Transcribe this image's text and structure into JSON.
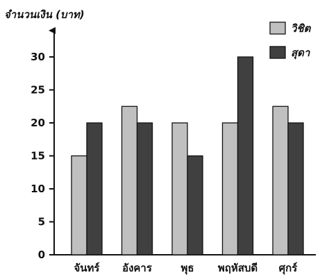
{
  "chart_data": {
    "type": "bar",
    "ylabel": "จำนวนเงิน (บาท)",
    "categories": [
      "จันทร์",
      "อังคาร",
      "พุธ",
      "พฤหัสบดี",
      "ศุกร์"
    ],
    "series": [
      {
        "name": "วิชิต",
        "color": "#c0c0c0",
        "values": [
          15,
          22.5,
          20,
          20,
          22.5
        ]
      },
      {
        "name": "สุดา",
        "color": "#404040",
        "values": [
          20,
          20,
          15,
          30,
          20
        ]
      }
    ],
    "yticks": [
      0,
      5,
      10,
      15,
      20,
      25,
      30
    ],
    "ylim": [
      0,
      35
    ],
    "grid": false,
    "legend": "top-right"
  }
}
